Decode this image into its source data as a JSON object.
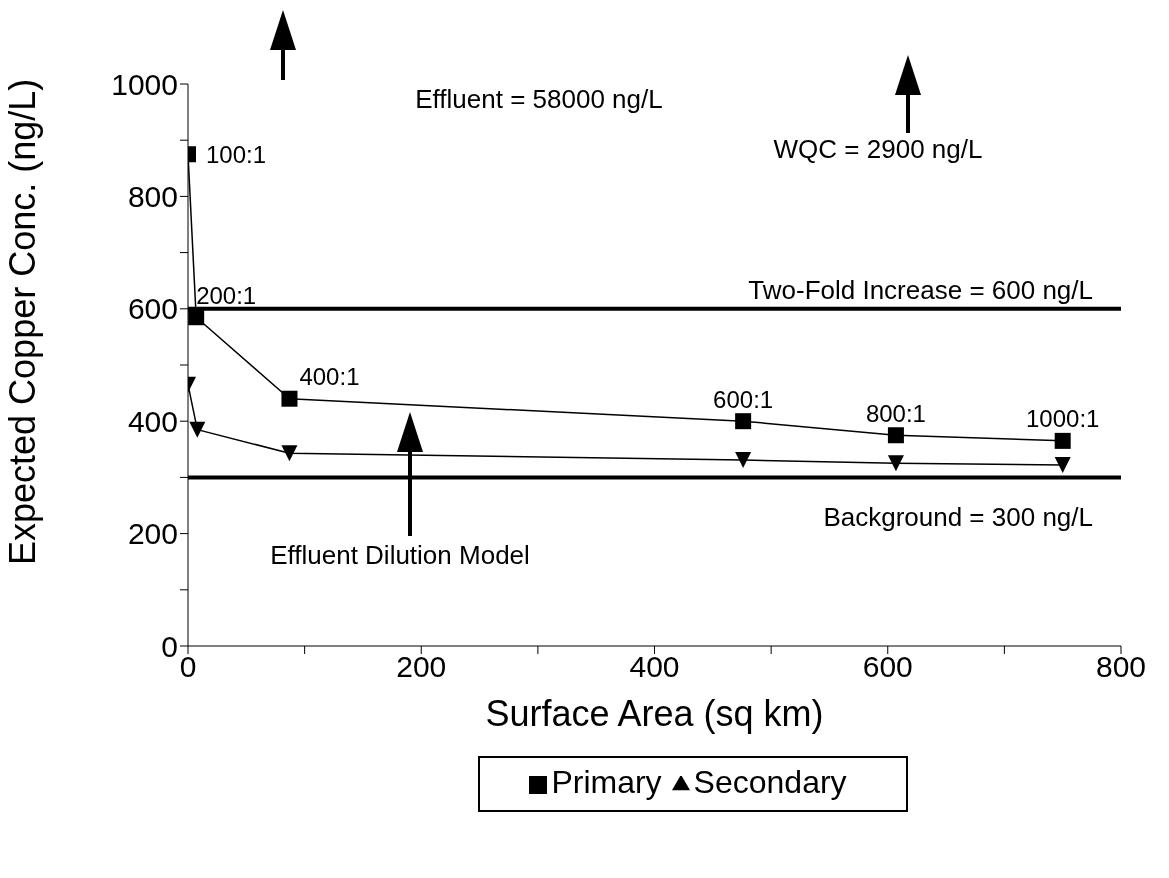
{
  "chart_data": {
    "type": "line",
    "xlabel": "Surface Area (sq km)",
    "ylabel": "Expected Copper Conc. (ng/L)",
    "xlim": [
      0,
      800
    ],
    "xticks": [
      0,
      {
        "value": 100,
        "label": null
      },
      200,
      {
        "value": 300,
        "label": null
      },
      400,
      {
        "value": 500,
        "label": null
      },
      600,
      {
        "value": 700,
        "label": null
      },
      800
    ],
    "ylim": [
      0,
      1000
    ],
    "yticks": [
      0,
      {
        "value": 100,
        "label": null
      },
      200,
      {
        "value": 300,
        "label": null
      },
      400,
      {
        "value": 500,
        "label": null
      },
      600,
      {
        "value": 700,
        "label": null
      },
      800,
      {
        "value": 900,
        "label": null
      },
      1000
    ],
    "grid": false,
    "legend": "bottom",
    "line_style": "solid",
    "series": [
      {
        "name": "Primary",
        "color": "#000000",
        "marker": "square",
        "x": [
          0,
          7,
          87,
          476,
          607,
          750
        ],
        "values": [
          875,
          585,
          440,
          400,
          375,
          365
        ]
      },
      {
        "name": "Secondary",
        "color": "#000000",
        "marker": "triangle",
        "x": [
          0,
          8,
          87,
          476,
          607,
          750
        ],
        "values": [
          465,
          385,
          343,
          331,
          325,
          322
        ]
      }
    ],
    "ref_lines": [
      {
        "axis": "y",
        "value": 600,
        "label": "Two-Fold Increase = 600 ng/L",
        "color": "#000000"
      },
      {
        "axis": "y",
        "value": 300,
        "label": "Background = 300 ng/L",
        "color": "#000000"
      }
    ],
    "annotations": [
      "Effluent = 58000 ng/L",
      "WQC = 2900 ng/L",
      "Effluent Dilution Model",
      {
        "text": "100:1",
        "x": 0,
        "y": 875
      },
      {
        "text": "200:1",
        "x": 7,
        "y": 585
      },
      {
        "text": "400:1",
        "x": 87,
        "y": 440
      },
      {
        "text": "600:1",
        "x": 476,
        "y": 400
      },
      {
        "text": "800:1",
        "x": 607,
        "y": 375
      },
      {
        "text": "1000:1",
        "x": 750,
        "y": 365
      }
    ]
  }
}
